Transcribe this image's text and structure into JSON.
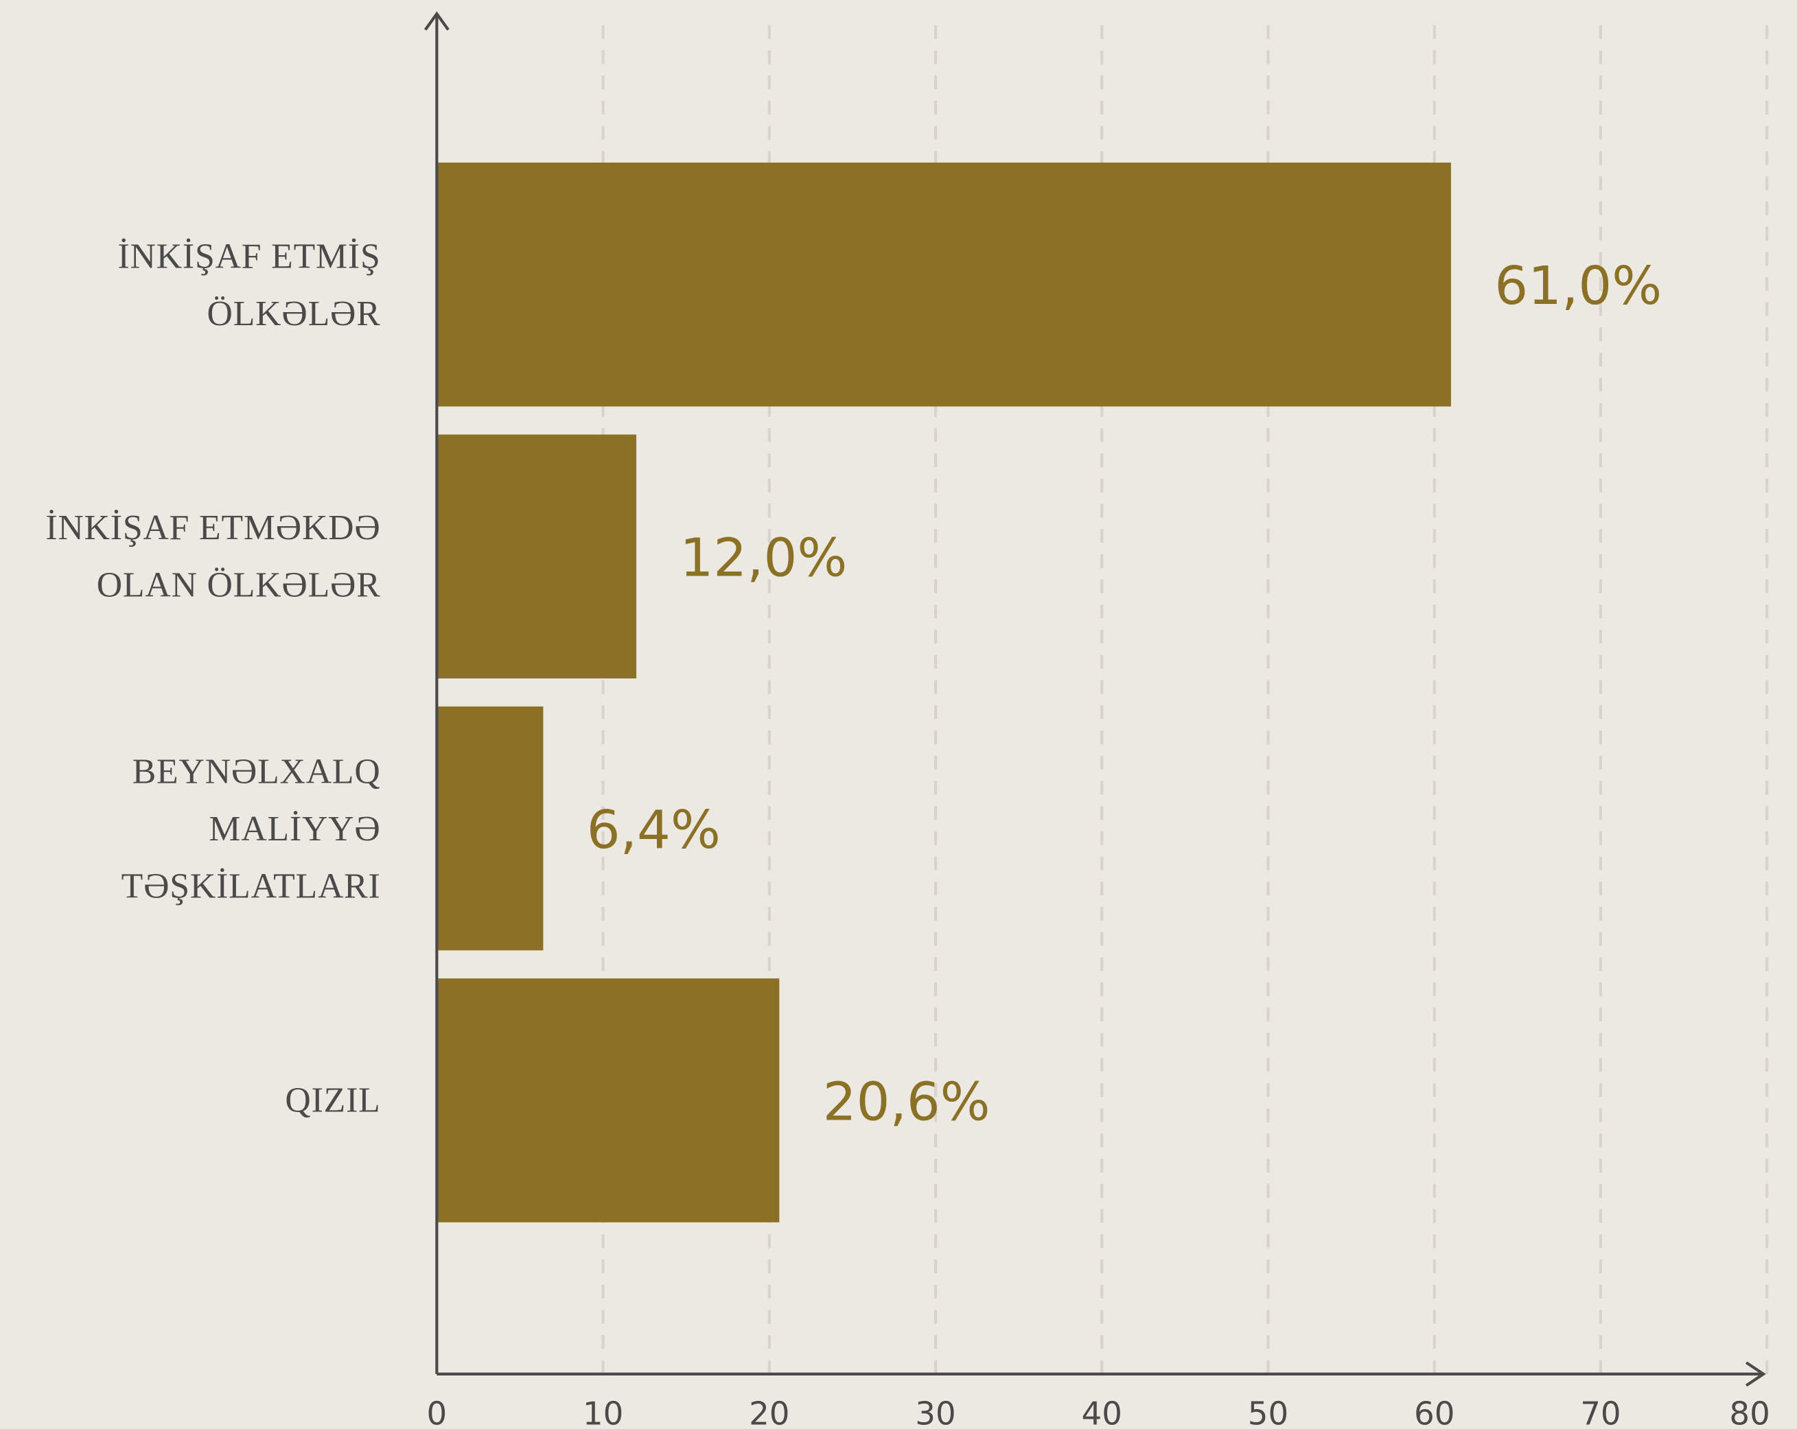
{
  "chart_data": {
    "type": "hbar",
    "categories": [
      "İNKİŞAF ETMİŞ ÖLKƏLƏR",
      "İNKİŞAF ETMƏKDƏ OLAN ÖLKƏLƏR",
      "BEYNƏLXALQ MALİYYƏ TƏŞKİLATLARI",
      "QIZIL"
    ],
    "values": [
      61.0,
      12.0,
      6.4,
      20.6
    ],
    "value_labels": [
      "61,0%",
      "12,0%",
      "6,4%",
      "20,6%"
    ],
    "color": "#8b7125",
    "xlim": [
      0,
      80
    ],
    "xticks": [
      0,
      10,
      20,
      30,
      40,
      50,
      60,
      70,
      80
    ],
    "grid": true
  }
}
